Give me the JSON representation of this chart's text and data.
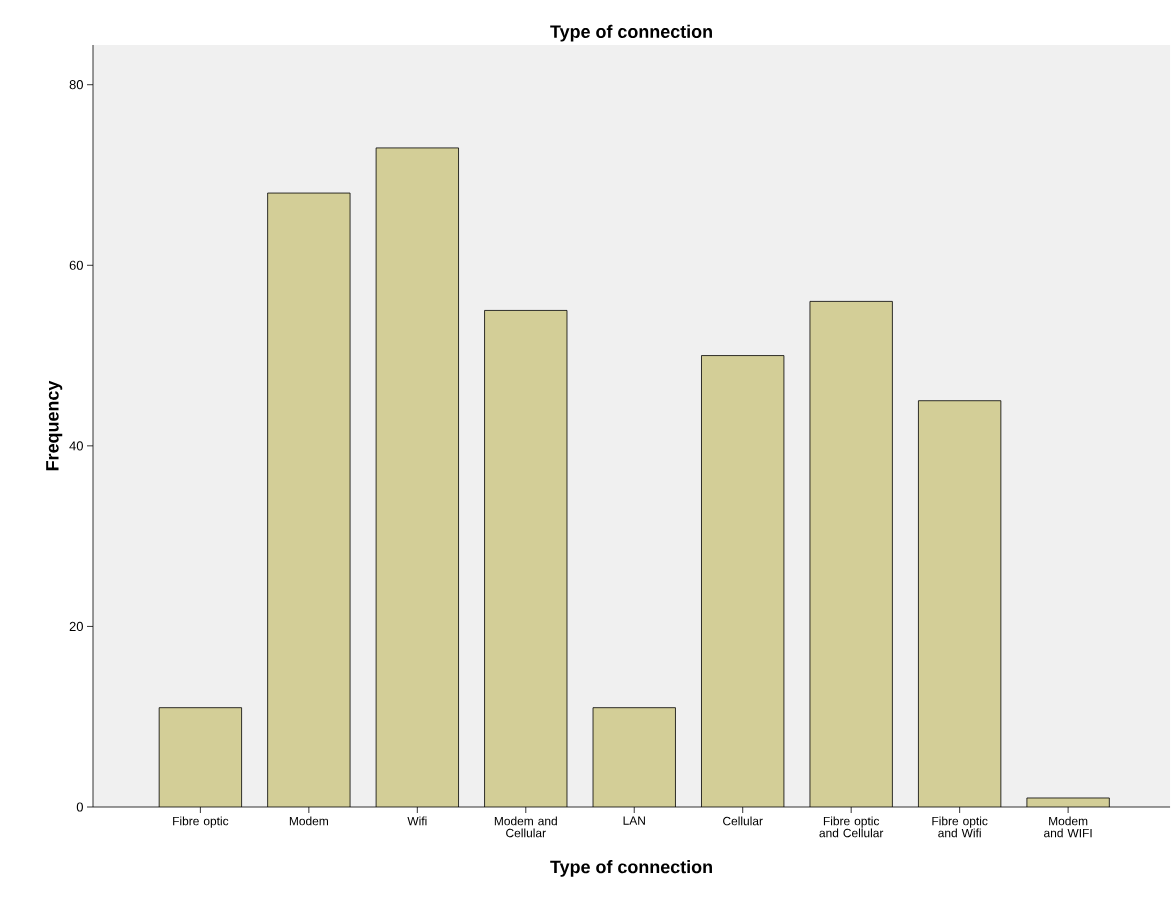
{
  "chart_data": {
    "type": "bar",
    "title": "Type of connection",
    "xlabel": "Type of connection",
    "ylabel": "Frequency",
    "categories": [
      "Fibre optic",
      "Modem",
      "Wifi",
      "Modem and Cellular",
      "LAN",
      "Cellular",
      "Fibre optic and Cellular",
      "Fibre optic and Wifi",
      "Modem and WIFI"
    ],
    "values": [
      11,
      68,
      73,
      55,
      11,
      50,
      56,
      45,
      1
    ],
    "color": "#d3ce97",
    "ylim": [
      0,
      84.4
    ],
    "yticks": [
      0,
      20,
      40,
      60,
      80
    ],
    "grid": false
  }
}
